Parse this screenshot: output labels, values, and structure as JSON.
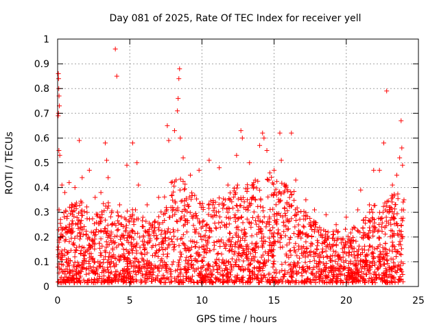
{
  "chart_data": {
    "type": "scatter",
    "title": "Day 081 of 2025, Rate Of TEC Index for receiver yell",
    "xlabel": "GPS time / hours",
    "ylabel": "ROTI / TECUs",
    "xlim": [
      0,
      25
    ],
    "ylim": [
      0,
      1
    ],
    "xticks": [
      0,
      5,
      10,
      15,
      20,
      25
    ],
    "yticks": [
      0,
      0.1,
      0.2,
      0.3,
      0.4,
      0.5,
      0.6,
      0.7,
      0.8,
      0.9,
      1
    ],
    "xtick_labels": [
      "0",
      "5",
      "10",
      "15",
      "20",
      "25"
    ],
    "ytick_labels": [
      "0",
      "0.1",
      "0.2",
      "0.3",
      "0.4",
      "0.5",
      "0.6",
      "0.7",
      "0.8",
      "0.9",
      "1"
    ],
    "grid": true,
    "marker": "+",
    "color": "#ff0000",
    "series": [
      {
        "name": "ROTI",
        "points": [
          [
            0.05,
            0.86
          ],
          [
            0.07,
            0.84
          ],
          [
            0.08,
            0.8
          ],
          [
            0.1,
            0.77
          ],
          [
            0.12,
            0.73
          ],
          [
            0.06,
            0.7
          ],
          [
            0.04,
            0.69
          ],
          [
            0.09,
            0.55
          ],
          [
            0.15,
            0.53
          ],
          [
            0.1,
            0.31
          ],
          [
            0.3,
            0.41
          ],
          [
            0.5,
            0.38
          ],
          [
            0.8,
            0.42
          ],
          [
            1.2,
            0.4
          ],
          [
            1.5,
            0.59
          ],
          [
            1.7,
            0.44
          ],
          [
            2.2,
            0.47
          ],
          [
            2.6,
            0.36
          ],
          [
            3.0,
            0.38
          ],
          [
            3.3,
            0.58
          ],
          [
            3.4,
            0.51
          ],
          [
            3.5,
            0.44
          ],
          [
            4.0,
            0.96
          ],
          [
            4.1,
            0.85
          ],
          [
            4.3,
            0.33
          ],
          [
            4.8,
            0.49
          ],
          [
            5.2,
            0.58
          ],
          [
            5.5,
            0.5
          ],
          [
            5.6,
            0.41
          ],
          [
            6.2,
            0.33
          ],
          [
            7.0,
            0.36
          ],
          [
            7.6,
            0.65
          ],
          [
            7.7,
            0.59
          ],
          [
            8.1,
            0.63
          ],
          [
            8.3,
            0.71
          ],
          [
            8.35,
            0.76
          ],
          [
            8.4,
            0.84
          ],
          [
            8.45,
            0.88
          ],
          [
            8.5,
            0.6
          ],
          [
            8.7,
            0.52
          ],
          [
            9.2,
            0.45
          ],
          [
            9.8,
            0.47
          ],
          [
            10.5,
            0.51
          ],
          [
            11.2,
            0.48
          ],
          [
            11.8,
            0.41
          ],
          [
            12.4,
            0.53
          ],
          [
            12.7,
            0.63
          ],
          [
            12.8,
            0.6
          ],
          [
            13.3,
            0.5
          ],
          [
            14.0,
            0.57
          ],
          [
            14.2,
            0.62
          ],
          [
            14.3,
            0.6
          ],
          [
            14.5,
            0.55
          ],
          [
            15.0,
            0.47
          ],
          [
            15.4,
            0.62
          ],
          [
            15.5,
            0.51
          ],
          [
            16.2,
            0.62
          ],
          [
            16.5,
            0.43
          ],
          [
            17.2,
            0.35
          ],
          [
            17.8,
            0.31
          ],
          [
            18.6,
            0.29
          ],
          [
            19.3,
            0.25
          ],
          [
            20.0,
            0.28
          ],
          [
            20.8,
            0.31
          ],
          [
            21.0,
            0.39
          ],
          [
            21.6,
            0.33
          ],
          [
            21.9,
            0.47
          ],
          [
            22.3,
            0.47
          ],
          [
            22.6,
            0.58
          ],
          [
            22.8,
            0.79
          ],
          [
            23.2,
            0.41
          ],
          [
            23.5,
            0.45
          ],
          [
            23.7,
            0.52
          ],
          [
            23.8,
            0.67
          ],
          [
            23.85,
            0.56
          ],
          [
            23.9,
            0.49
          ],
          [
            24.0,
            0.35
          ]
        ],
        "envelope": [
          [
            0.0,
            0.26
          ],
          [
            0.5,
            0.3
          ],
          [
            1.0,
            0.32
          ],
          [
            1.5,
            0.34
          ],
          [
            2.0,
            0.32
          ],
          [
            2.5,
            0.3
          ],
          [
            3.0,
            0.33
          ],
          [
            3.5,
            0.36
          ],
          [
            4.0,
            0.3
          ],
          [
            4.5,
            0.28
          ],
          [
            5.0,
            0.3
          ],
          [
            5.5,
            0.33
          ],
          [
            6.0,
            0.28
          ],
          [
            6.5,
            0.25
          ],
          [
            7.0,
            0.28
          ],
          [
            7.5,
            0.38
          ],
          [
            8.0,
            0.42
          ],
          [
            8.5,
            0.44
          ],
          [
            9.0,
            0.38
          ],
          [
            9.5,
            0.36
          ],
          [
            10.0,
            0.33
          ],
          [
            10.5,
            0.34
          ],
          [
            11.0,
            0.36
          ],
          [
            11.5,
            0.34
          ],
          [
            12.0,
            0.37
          ],
          [
            12.5,
            0.4
          ],
          [
            13.0,
            0.4
          ],
          [
            13.5,
            0.42
          ],
          [
            14.0,
            0.44
          ],
          [
            14.5,
            0.45
          ],
          [
            15.0,
            0.44
          ],
          [
            15.5,
            0.42
          ],
          [
            16.0,
            0.4
          ],
          [
            16.5,
            0.36
          ],
          [
            17.0,
            0.3
          ],
          [
            17.5,
            0.26
          ],
          [
            18.0,
            0.24
          ],
          [
            18.5,
            0.22
          ],
          [
            19.0,
            0.22
          ],
          [
            19.5,
            0.21
          ],
          [
            20.0,
            0.22
          ],
          [
            20.5,
            0.23
          ],
          [
            21.0,
            0.24
          ],
          [
            21.5,
            0.28
          ],
          [
            22.0,
            0.33
          ],
          [
            22.5,
            0.32
          ],
          [
            23.0,
            0.35
          ],
          [
            23.5,
            0.38
          ],
          [
            24.0,
            0.33
          ]
        ]
      }
    ]
  }
}
